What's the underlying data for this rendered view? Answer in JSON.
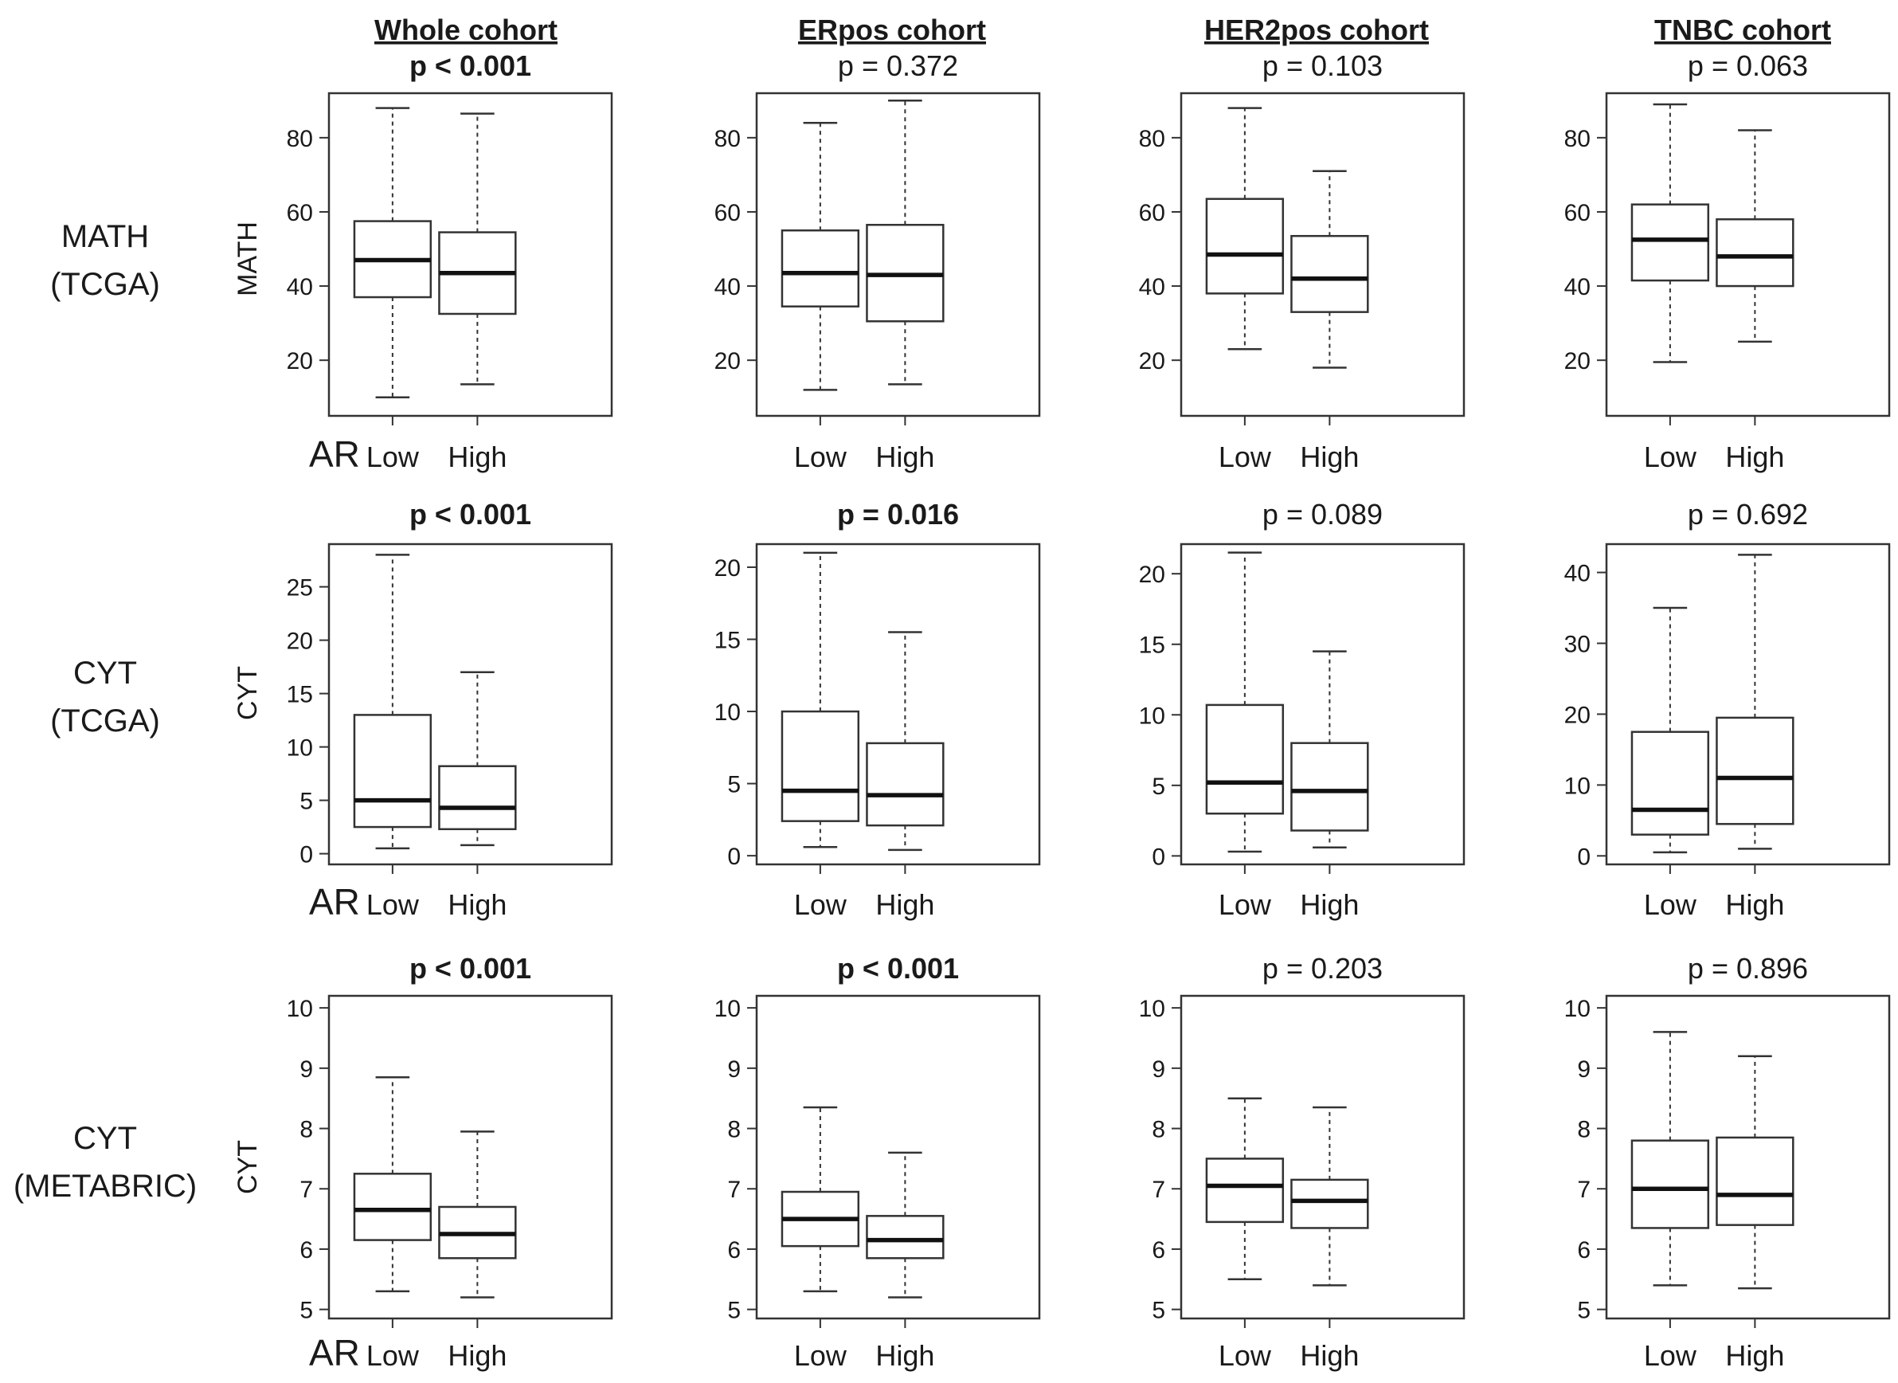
{
  "figure": {
    "columns": [
      "Whole cohort",
      "ERpos cohort",
      "HER2pos cohort",
      "TNBC cohort"
    ],
    "rows": [
      {
        "label_line1": "MATH",
        "label_line2": "(TCGA)",
        "ylabel": "MATH"
      },
      {
        "label_line1": "CYT",
        "label_line2": "(TCGA)",
        "ylabel": "CYT"
      },
      {
        "label_line1": "CYT",
        "label_line2": "(METABRIC)",
        "ylabel": "CYT"
      }
    ],
    "group_label": "AR"
  },
  "chart_data": [
    {
      "type": "box",
      "row": 0,
      "col": 0,
      "cohort": "Whole cohort",
      "measure": "MATH (TCGA)",
      "pvalue": "p < 0.001",
      "significant": true,
      "ylabel": "MATH",
      "ylim": [
        5,
        92
      ],
      "yticks": [
        "20",
        "40",
        "60",
        "80"
      ],
      "ytick_values": [
        20,
        40,
        60,
        80
      ],
      "categories": [
        "Low",
        "High"
      ],
      "boxes": [
        {
          "group": "Low",
          "whisker_low": 10,
          "q1": 37,
          "median": 47,
          "q3": 57.5,
          "whisker_high": 88
        },
        {
          "group": "High",
          "whisker_low": 13.5,
          "q1": 32.5,
          "median": 43.5,
          "q3": 54.5,
          "whisker_high": 86.5
        }
      ]
    },
    {
      "type": "box",
      "row": 0,
      "col": 1,
      "cohort": "ERpos cohort",
      "measure": "MATH (TCGA)",
      "pvalue": "p = 0.372",
      "significant": false,
      "ylabel": "",
      "ylim": [
        5,
        92
      ],
      "yticks": [
        "20",
        "40",
        "60",
        "80"
      ],
      "ytick_values": [
        20,
        40,
        60,
        80
      ],
      "categories": [
        "Low",
        "High"
      ],
      "boxes": [
        {
          "group": "Low",
          "whisker_low": 12,
          "q1": 34.5,
          "median": 43.5,
          "q3": 55,
          "whisker_high": 84
        },
        {
          "group": "High",
          "whisker_low": 13.5,
          "q1": 30.5,
          "median": 43,
          "q3": 56.5,
          "whisker_high": 90
        }
      ]
    },
    {
      "type": "box",
      "row": 0,
      "col": 2,
      "cohort": "HER2pos cohort",
      "measure": "MATH (TCGA)",
      "pvalue": "p = 0.103",
      "significant": false,
      "ylabel": "",
      "ylim": [
        5,
        92
      ],
      "yticks": [
        "20",
        "40",
        "60",
        "80"
      ],
      "ytick_values": [
        20,
        40,
        60,
        80
      ],
      "categories": [
        "Low",
        "High"
      ],
      "boxes": [
        {
          "group": "Low",
          "whisker_low": 23,
          "q1": 38,
          "median": 48.5,
          "q3": 63.5,
          "whisker_high": 88
        },
        {
          "group": "High",
          "whisker_low": 18,
          "q1": 33,
          "median": 42,
          "q3": 53.5,
          "whisker_high": 71
        }
      ]
    },
    {
      "type": "box",
      "row": 0,
      "col": 3,
      "cohort": "TNBC cohort",
      "measure": "MATH (TCGA)",
      "pvalue": "p = 0.063",
      "significant": false,
      "ylabel": "",
      "ylim": [
        5,
        92
      ],
      "yticks": [
        "20",
        "40",
        "60",
        "80"
      ],
      "ytick_values": [
        20,
        40,
        60,
        80
      ],
      "categories": [
        "Low",
        "High"
      ],
      "boxes": [
        {
          "group": "Low",
          "whisker_low": 19.5,
          "q1": 41.5,
          "median": 52.5,
          "q3": 62,
          "whisker_high": 89
        },
        {
          "group": "High",
          "whisker_low": 25,
          "q1": 40,
          "median": 48,
          "q3": 58,
          "whisker_high": 82
        }
      ]
    },
    {
      "type": "box",
      "row": 1,
      "col": 0,
      "cohort": "Whole cohort",
      "measure": "CYT (TCGA)",
      "pvalue": "p < 0.001",
      "significant": true,
      "ylabel": "CYT",
      "ylim": [
        -1,
        29
      ],
      "yticks": [
        "0",
        "5",
        "10",
        "15",
        "20",
        "25"
      ],
      "ytick_values": [
        0,
        5,
        10,
        15,
        20,
        25
      ],
      "categories": [
        "Low",
        "High"
      ],
      "boxes": [
        {
          "group": "Low",
          "whisker_low": 0.5,
          "q1": 2.5,
          "median": 5,
          "q3": 13,
          "whisker_high": 28
        },
        {
          "group": "High",
          "whisker_low": 0.8,
          "q1": 2.3,
          "median": 4.3,
          "q3": 8.2,
          "whisker_high": 17
        }
      ]
    },
    {
      "type": "box",
      "row": 1,
      "col": 1,
      "cohort": "ERpos cohort",
      "measure": "CYT (TCGA)",
      "pvalue": "p = 0.016",
      "significant": true,
      "ylabel": "",
      "ylim": [
        -0.6,
        21.6
      ],
      "yticks": [
        "0",
        "5",
        "10",
        "15",
        "20"
      ],
      "ytick_values": [
        0,
        5,
        10,
        15,
        20
      ],
      "categories": [
        "Low",
        "High"
      ],
      "boxes": [
        {
          "group": "Low",
          "whisker_low": 0.6,
          "q1": 2.4,
          "median": 4.5,
          "q3": 10,
          "whisker_high": 21
        },
        {
          "group": "High",
          "whisker_low": 0.4,
          "q1": 2.1,
          "median": 4.2,
          "q3": 7.8,
          "whisker_high": 15.5
        }
      ]
    },
    {
      "type": "box",
      "row": 1,
      "col": 2,
      "cohort": "HER2pos cohort",
      "measure": "CYT (TCGA)",
      "pvalue": "p = 0.089",
      "significant": false,
      "ylabel": "",
      "ylim": [
        -0.6,
        22.1
      ],
      "yticks": [
        "0",
        "5",
        "10",
        "15",
        "20"
      ],
      "ytick_values": [
        0,
        5,
        10,
        15,
        20
      ],
      "categories": [
        "Low",
        "High"
      ],
      "boxes": [
        {
          "group": "Low",
          "whisker_low": 0.3,
          "q1": 3,
          "median": 5.2,
          "q3": 10.7,
          "whisker_high": 21.5
        },
        {
          "group": "High",
          "whisker_low": 0.6,
          "q1": 1.8,
          "median": 4.6,
          "q3": 8,
          "whisker_high": 14.5
        }
      ]
    },
    {
      "type": "box",
      "row": 1,
      "col": 3,
      "cohort": "TNBC cohort",
      "measure": "CYT (TCGA)",
      "pvalue": "p = 0.692",
      "significant": false,
      "ylabel": "",
      "ylim": [
        -1.2,
        44
      ],
      "yticks": [
        "0",
        "10",
        "20",
        "30",
        "40"
      ],
      "ytick_values": [
        0,
        10,
        20,
        30,
        40
      ],
      "categories": [
        "Low",
        "High"
      ],
      "boxes": [
        {
          "group": "Low",
          "whisker_low": 0.5,
          "q1": 3,
          "median": 6.5,
          "q3": 17.5,
          "whisker_high": 35
        },
        {
          "group": "High",
          "whisker_low": 1,
          "q1": 4.5,
          "median": 11,
          "q3": 19.5,
          "whisker_high": 42.5
        }
      ]
    },
    {
      "type": "box",
      "row": 2,
      "col": 0,
      "cohort": "Whole cohort",
      "measure": "CYT (METABRIC)",
      "pvalue": "p < 0.001",
      "significant": true,
      "ylabel": "CYT",
      "ylim": [
        4.85,
        10.2
      ],
      "yticks": [
        "5",
        "6",
        "7",
        "8",
        "9",
        "10"
      ],
      "ytick_values": [
        5,
        6,
        7,
        8,
        9,
        10
      ],
      "categories": [
        "Low",
        "High"
      ],
      "boxes": [
        {
          "group": "Low",
          "whisker_low": 5.3,
          "q1": 6.15,
          "median": 6.65,
          "q3": 7.25,
          "whisker_high": 8.85
        },
        {
          "group": "High",
          "whisker_low": 5.2,
          "q1": 5.85,
          "median": 6.25,
          "q3": 6.7,
          "whisker_high": 7.95
        }
      ]
    },
    {
      "type": "box",
      "row": 2,
      "col": 1,
      "cohort": "ERpos cohort",
      "measure": "CYT (METABRIC)",
      "pvalue": "p < 0.001",
      "significant": true,
      "ylabel": "",
      "ylim": [
        4.85,
        10.2
      ],
      "yticks": [
        "5",
        "6",
        "7",
        "8",
        "9",
        "10"
      ],
      "ytick_values": [
        5,
        6,
        7,
        8,
        9,
        10
      ],
      "categories": [
        "Low",
        "High"
      ],
      "boxes": [
        {
          "group": "Low",
          "whisker_low": 5.3,
          "q1": 6.05,
          "median": 6.5,
          "q3": 6.95,
          "whisker_high": 8.35
        },
        {
          "group": "High",
          "whisker_low": 5.2,
          "q1": 5.85,
          "median": 6.15,
          "q3": 6.55,
          "whisker_high": 7.6
        }
      ]
    },
    {
      "type": "box",
      "row": 2,
      "col": 2,
      "cohort": "HER2pos cohort",
      "measure": "CYT (METABRIC)",
      "pvalue": "p = 0.203",
      "significant": false,
      "ylabel": "",
      "ylim": [
        4.85,
        10.2
      ],
      "yticks": [
        "5",
        "6",
        "7",
        "8",
        "9",
        "10"
      ],
      "ytick_values": [
        5,
        6,
        7,
        8,
        9,
        10
      ],
      "categories": [
        "Low",
        "High"
      ],
      "boxes": [
        {
          "group": "Low",
          "whisker_low": 5.5,
          "q1": 6.45,
          "median": 7.05,
          "q3": 7.5,
          "whisker_high": 8.5
        },
        {
          "group": "High",
          "whisker_low": 5.4,
          "q1": 6.35,
          "median": 6.8,
          "q3": 7.15,
          "whisker_high": 8.35
        }
      ]
    },
    {
      "type": "box",
      "row": 2,
      "col": 3,
      "cohort": "TNBC cohort",
      "measure": "CYT (METABRIC)",
      "pvalue": "p = 0.896",
      "significant": false,
      "ylabel": "",
      "ylim": [
        4.85,
        10.2
      ],
      "yticks": [
        "5",
        "6",
        "7",
        "8",
        "9",
        "10"
      ],
      "ytick_values": [
        5,
        6,
        7,
        8,
        9,
        10
      ],
      "categories": [
        "Low",
        "High"
      ],
      "boxes": [
        {
          "group": "Low",
          "whisker_low": 5.4,
          "q1": 6.35,
          "median": 7,
          "q3": 7.8,
          "whisker_high": 9.6
        },
        {
          "group": "High",
          "whisker_low": 5.35,
          "q1": 6.4,
          "median": 6.9,
          "q3": 7.85,
          "whisker_high": 9.2
        }
      ]
    }
  ]
}
